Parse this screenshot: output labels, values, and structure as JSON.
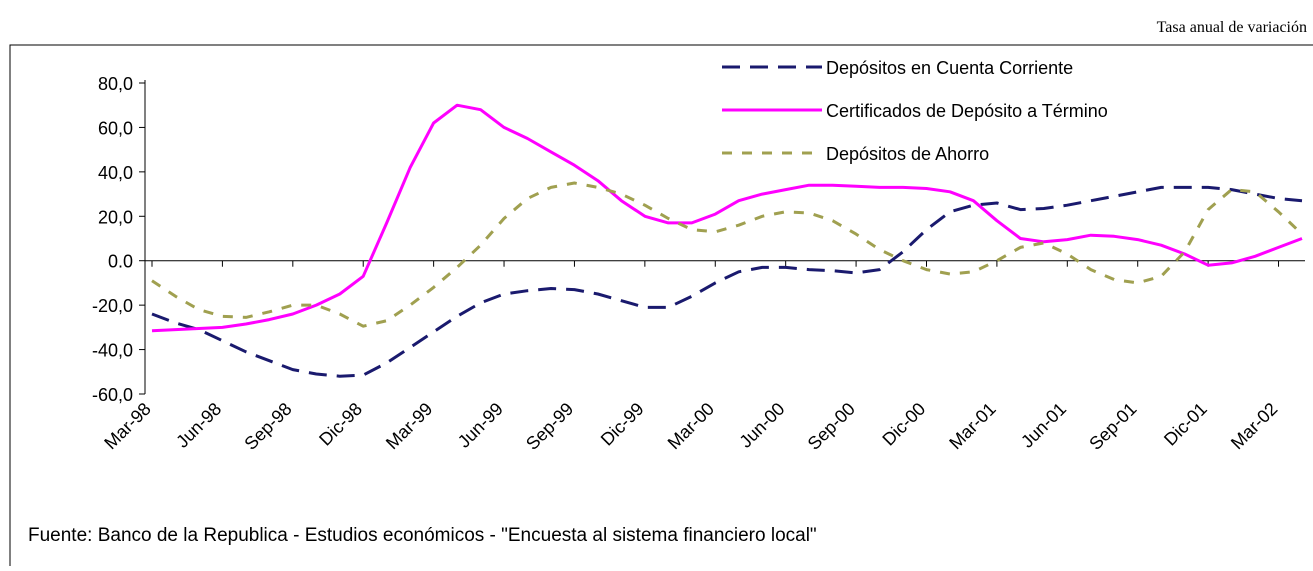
{
  "chart_data": {
    "type": "line",
    "note": "Tasa anual de variación",
    "source": "Fuente: Banco de la Republica - Estudios económicos - \"Encuesta al sistema financiero local\"",
    "categories": [
      "Mar-98",
      null,
      null,
      "Jun-98",
      null,
      null,
      "Sep-98",
      null,
      null,
      "Dic-98",
      null,
      null,
      "Mar-99",
      null,
      null,
      "Jun-99",
      null,
      null,
      "Sep-99",
      null,
      null,
      "Dic-99",
      null,
      null,
      "Mar-00",
      null,
      null,
      "Jun-00",
      null,
      null,
      "Sep-00",
      null,
      null,
      "Dic-00",
      null,
      null,
      "Mar-01",
      null,
      null,
      "Jun-01",
      null,
      null,
      "Sep-01",
      null,
      null,
      "Dic-01",
      null,
      null,
      "Mar-02",
      null
    ],
    "series": [
      {
        "name": "Depósitos en Cuenta Corriente",
        "color": "#1a1a6e",
        "dash": "18,10",
        "values": [
          -24,
          -28,
          -31,
          -36,
          -41,
          -45,
          -49,
          -51,
          -52,
          -51.5,
          -46,
          -39,
          -32,
          -25,
          -19,
          -15,
          -13.5,
          -12.5,
          -13,
          -15,
          -18,
          -21,
          -21,
          -16,
          -10,
          -5,
          -3,
          -3,
          -4,
          -4.5,
          -5.5,
          -4,
          4,
          14,
          22,
          25,
          26,
          23,
          23.5,
          25,
          27,
          29,
          31,
          33,
          33,
          33,
          32,
          30,
          28,
          27
        ]
      },
      {
        "name": "Certificados de Depósito a Término",
        "color": "#ff00ff",
        "dash": "none",
        "values": [
          -31.5,
          -31,
          -30.5,
          -30,
          -28.5,
          -26.5,
          -24,
          -20,
          -15,
          -7,
          17,
          42,
          62,
          70,
          68,
          60,
          55,
          49,
          43,
          36,
          27,
          20,
          17,
          17,
          21,
          27,
          30,
          32,
          34,
          34,
          33.5,
          33,
          33,
          32.5,
          31,
          27,
          18,
          10,
          8.5,
          9.5,
          11.5,
          11,
          9.5,
          7,
          3,
          -2,
          -1,
          2,
          6,
          10
        ]
      },
      {
        "name": "Depósitos de Ahorro",
        "color": "#a0a050",
        "dash": "10,10",
        "values": [
          -9,
          -16,
          -22,
          -25,
          -25.5,
          -23,
          -20,
          -20,
          -24,
          -29.5,
          -27,
          -20,
          -12,
          -3,
          7,
          19,
          28,
          33,
          35,
          33,
          30,
          25,
          19,
          14,
          13,
          16,
          20,
          22,
          21.5,
          18,
          12,
          5,
          0,
          -4,
          -6,
          -5,
          0,
          6,
          8,
          3,
          -4,
          -8.5,
          -10,
          -7,
          4,
          23,
          32,
          31,
          22,
          12
        ]
      }
    ],
    "ylim": [
      -60,
      80
    ],
    "yticks": [
      {
        "value": -60,
        "label": "-60,0"
      },
      {
        "value": -40,
        "label": "-40,0"
      },
      {
        "value": -20,
        "label": "-20,0"
      },
      {
        "value": 0,
        "label": "0.0"
      },
      {
        "value": 20,
        "label": "20,0"
      },
      {
        "value": 40,
        "label": "40,0"
      },
      {
        "value": 60,
        "label": "60,0"
      },
      {
        "value": 80,
        "label": "80,0"
      }
    ],
    "grid": false,
    "legend": "top-right"
  }
}
